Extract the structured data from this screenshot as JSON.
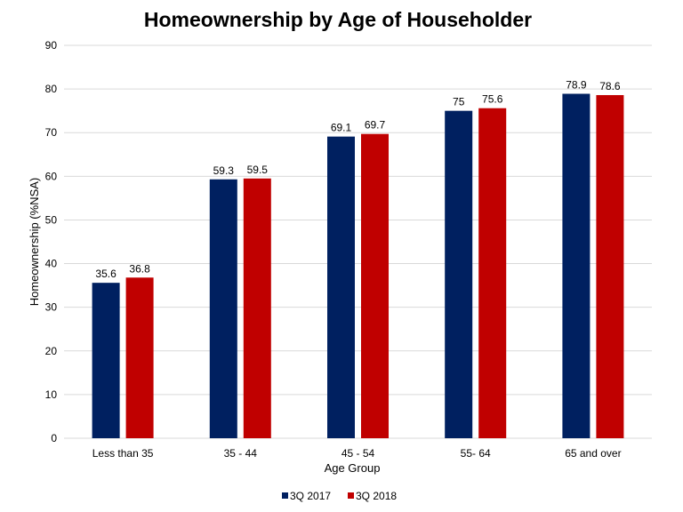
{
  "chart_data": {
    "type": "bar",
    "title": "Homeownership by Age of Householder",
    "xlabel": "Age Group",
    "ylabel": "Homeownership (%NSA)",
    "categories": [
      "Less than 35",
      "35 - 44",
      "45 - 54",
      "55- 64",
      "65 and over"
    ],
    "series": [
      {
        "name": "3Q 2017",
        "color": "#002060",
        "values": [
          35.6,
          59.3,
          69.1,
          75,
          78.9
        ],
        "labels": [
          "35.6",
          "59.3",
          "69.1",
          "75",
          "78.9"
        ]
      },
      {
        "name": "3Q 2018",
        "color": "#C00000",
        "values": [
          36.8,
          59.5,
          69.7,
          75.6,
          78.6
        ],
        "labels": [
          "36.8",
          "59.5",
          "69.7",
          "75.6",
          "78.6"
        ]
      }
    ],
    "ylim": [
      0,
      90
    ],
    "yticks": [
      0,
      10,
      20,
      30,
      40,
      50,
      60,
      70,
      80,
      90
    ],
    "grid": true,
    "legend_position": "bottom"
  }
}
